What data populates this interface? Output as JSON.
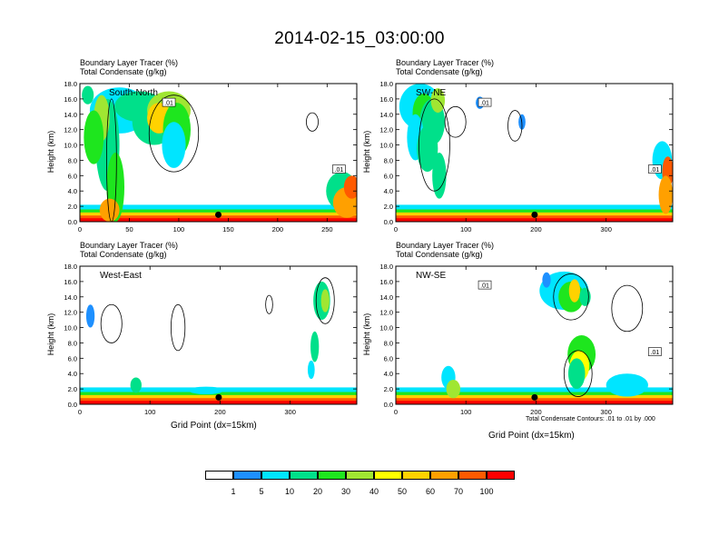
{
  "title": "2014-02-15_03:00:00",
  "colors": {
    "levels": [
      "#ffffff",
      "#1e90ff",
      "#00e5ff",
      "#00e08a",
      "#1ee61e",
      "#a0e632",
      "#ffff00",
      "#ffd200",
      "#ffa000",
      "#ff5a00",
      "#ff0000"
    ]
  },
  "colorbar": {
    "labels": [
      "1",
      "5",
      "10",
      "20",
      "30",
      "40",
      "50",
      "60",
      "70",
      "100"
    ]
  },
  "contour_note": "Total Condensate Contours: .01 to .01 by .000",
  "chart_data": [
    {
      "type": "heatmap",
      "panel_label": "South-North",
      "title_line1": "Boundary Layer Tracer    (%)",
      "title_line2": "Total Condensate    (g/kg)",
      "ylabel": "Height (km)",
      "xlabel": "",
      "xlim": [
        0,
        280
      ],
      "ylim": [
        0,
        18
      ],
      "x_ticks": [
        "0",
        "50",
        "100",
        "150",
        "200",
        "250"
      ],
      "y_ticks": [
        "0.0",
        "2.0",
        "4.0",
        "6.0",
        "8.0",
        "10.0",
        "12.0",
        "14.0",
        "16.0",
        "18.0"
      ],
      "contour_labels": [
        ".01",
        ".01"
      ],
      "marker_x": 140
    },
    {
      "type": "heatmap",
      "panel_label": "SW-NE",
      "title_line1": "Boundary Layer Tracer    (%)",
      "title_line2": "Total Condensate    (g/kg)",
      "ylabel": "Height (km)",
      "xlabel": "",
      "xlim": [
        0,
        395
      ],
      "ylim": [
        0,
        18
      ],
      "x_ticks": [
        "0",
        "100",
        "200",
        "300"
      ],
      "y_ticks": [
        "0.0",
        "2.0",
        "4.0",
        "6.0",
        "8.0",
        "10.0",
        "12.0",
        "14.0",
        "16.0",
        "18.0"
      ],
      "contour_labels": [
        ".01",
        ".01"
      ],
      "marker_x": 198
    },
    {
      "type": "heatmap",
      "panel_label": "West-East",
      "title_line1": "Boundary Layer Tracer    (%)",
      "title_line2": "Total Condensate    (g/kg)",
      "ylabel": "Height (km)",
      "xlabel": "Grid Point (dx=15km)",
      "xlim": [
        0,
        395
      ],
      "ylim": [
        0,
        18
      ],
      "x_ticks": [
        "0",
        "100",
        "200",
        "300"
      ],
      "y_ticks": [
        "0.0",
        "2.0",
        "4.0",
        "6.0",
        "8.0",
        "10.0",
        "12.0",
        "14.0",
        "16.0",
        "18.0"
      ],
      "contour_labels": [],
      "marker_x": 198
    },
    {
      "type": "heatmap",
      "panel_label": "NW-SE",
      "title_line1": "Boundary Layer Tracer    (%)",
      "title_line2": "Total Condensate    (g/kg)",
      "ylabel": "Height (km)",
      "xlabel": "Grid Point (dx=15km)",
      "xlim": [
        0,
        395
      ],
      "ylim": [
        0,
        18
      ],
      "x_ticks": [
        "0",
        "100",
        "200",
        "300"
      ],
      "y_ticks": [
        "0.0",
        "2.0",
        "4.0",
        "6.0",
        "8.0",
        "10.0",
        "12.0",
        "14.0",
        "16.0",
        "18.0"
      ],
      "contour_labels": [
        ".01",
        ".01"
      ],
      "marker_x": 198
    }
  ]
}
